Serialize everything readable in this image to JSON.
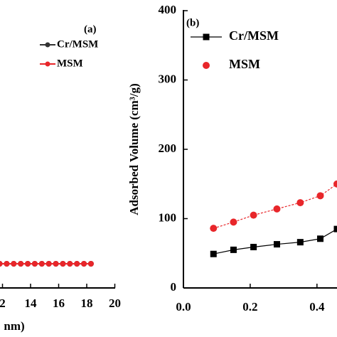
{
  "chart_data": [
    {
      "type": "line",
      "annotation": "(a)",
      "x_label": "nm)",
      "x": [
        11.8,
        12.3,
        12.8,
        13.3,
        13.8,
        14.3,
        14.8,
        15.3,
        15.8,
        16.3,
        16.8,
        17.3,
        17.8,
        18.3
      ],
      "series": [
        {
          "name": "Cr/MSM",
          "color": "#333333",
          "values": [
            0,
            0,
            0,
            0,
            0,
            0,
            0,
            0,
            0,
            0,
            0,
            0,
            0,
            0
          ]
        },
        {
          "name": "MSM",
          "color": "#e8262a",
          "values": [
            0,
            0,
            0,
            0,
            0,
            0,
            0,
            0,
            0,
            0,
            0,
            0,
            0,
            0
          ]
        }
      ],
      "xticks": [
        {
          "value": 12,
          "label": "2"
        },
        14,
        16,
        18,
        20
      ]
    },
    {
      "type": "line",
      "annotation": "(b)",
      "y_label": "Adsorbed Volume (cm³/g)",
      "x": [
        0.09,
        0.15,
        0.21,
        0.28,
        0.35,
        0.41,
        0.46
      ],
      "series": [
        {
          "name": "Cr/MSM",
          "color": "#000000",
          "marker": "square",
          "values": [
            49,
            55,
            59,
            63,
            66,
            71,
            85
          ]
        },
        {
          "name": "MSM",
          "color": "#e8262a",
          "marker": "circle",
          "values": [
            86,
            95,
            105,
            114,
            123,
            133,
            150
          ]
        }
      ],
      "xlim": [
        0.0,
        0.46
      ],
      "ylim": [
        0,
        400
      ],
      "xticks": [
        {
          "value": 0,
          "label": "0.0"
        },
        0.2,
        0.4
      ],
      "yticks": [
        0,
        100,
        200,
        300,
        400
      ]
    }
  ]
}
